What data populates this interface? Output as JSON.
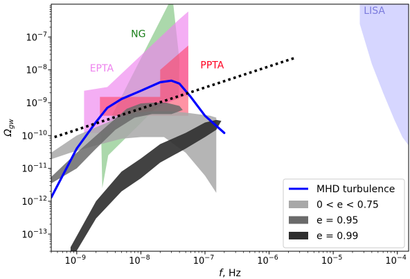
{
  "chart_data": {
    "type": "area",
    "xscale": "log",
    "yscale": "log",
    "xlim": [
      4e-10,
      0.00015
    ],
    "ylim": [
      3e-14,
      1e-06
    ],
    "grid": false,
    "legend_position": "lower-right",
    "xlabel": "f, Hz",
    "ylabel": "Ω_gw",
    "xticks": [
      {
        "value": 1e-09,
        "base": "10",
        "exp": "−9"
      },
      {
        "value": 1e-08,
        "base": "10",
        "exp": "−8"
      },
      {
        "value": 1e-07,
        "base": "10",
        "exp": "−7"
      },
      {
        "value": 1e-06,
        "base": "10",
        "exp": "−6"
      },
      {
        "value": 1e-05,
        "base": "10",
        "exp": "−5"
      },
      {
        "value": 0.0001,
        "base": "10",
        "exp": "−4"
      }
    ],
    "yticks": [
      {
        "value": 1e-13,
        "base": "10",
        "exp": "−13"
      },
      {
        "value": 1e-12,
        "base": "10",
        "exp": "−12"
      },
      {
        "value": 1e-11,
        "base": "10",
        "exp": "−11"
      },
      {
        "value": 1e-10,
        "base": "10",
        "exp": "−10"
      },
      {
        "value": 1e-09,
        "base": "10",
        "exp": "−9"
      },
      {
        "value": 1e-08,
        "base": "10",
        "exp": "−8"
      },
      {
        "value": 1e-07,
        "base": "10",
        "exp": "−7"
      }
    ],
    "regions": [
      {
        "id": "lisa",
        "label": "LISA",
        "color": "#c8c8ff",
        "label_color": "#7b7bdd",
        "opacity": 0.75,
        "label_at": [
          3e-05,
          5e-07
        ],
        "points": [
          [
            2.6e-05,
            1e-06
          ],
          [
            2.6e-05,
            2.5e-07
          ],
          [
            4e-05,
            1.5e-08
          ],
          [
            6e-05,
            2e-09
          ],
          [
            9e-05,
            3e-10
          ],
          [
            0.00012,
            9e-11
          ],
          [
            0.00015,
            5e-11
          ],
          [
            0.00015,
            1e-06
          ]
        ]
      },
      {
        "id": "ng",
        "label": "NG",
        "color": "#66b866",
        "label_color": "#1a7f1a",
        "opacity": 0.55,
        "label_at": [
          7e-09,
          1e-07
        ],
        "points": [
          [
            2.5e-09,
            2.5e-12
          ],
          [
            3.1e-09,
            2.5e-11
          ],
          [
            1.6e-08,
            6e-10
          ],
          [
            2.8e-08,
            1.2e-09
          ],
          [
            3.9e-08,
            1.3e-09
          ],
          [
            4e-08,
            2e-08
          ],
          [
            3.2e-08,
            1e-06
          ],
          [
            2.7e-08,
            1e-06
          ],
          [
            3e-09,
            2.2e-10
          ],
          [
            2.4e-09,
            1.3e-10
          ]
        ]
      },
      {
        "id": "epta",
        "label": "EPTA",
        "color": "#ee82ee",
        "label_color": "#ee82ee",
        "opacity": 0.65,
        "label_at": [
          1.6e-09,
          9e-09
        ],
        "points": [
          [
            1.3e-09,
            2.3e-09
          ],
          [
            3e-09,
            3e-09
          ],
          [
            3.8e-08,
            3.2e-07
          ],
          [
            5.5e-08,
            6e-07
          ],
          [
            5.5e-08,
            1.8e-09
          ],
          [
            2e-08,
            8e-10
          ],
          [
            8e-09,
            7e-10
          ],
          [
            3e-09,
            1.2e-10
          ],
          [
            1.3e-09,
            1.2e-10
          ]
        ]
      },
      {
        "id": "ppta",
        "label": "PPTA",
        "color": "#ff3a5a",
        "label_color": "#ff0020",
        "opacity": 0.55,
        "label_at": [
          8.5e-08,
          1.1e-08
        ],
        "points": [
          [
            2.3e-09,
            1.5e-09
          ],
          [
            2e-08,
            1.5e-09
          ],
          [
            2e-08,
            1e-08
          ],
          [
            5.5e-08,
            5.5e-08
          ],
          [
            5.5e-08,
            4e-10
          ],
          [
            2.3e-09,
            4e-10
          ]
        ]
      },
      {
        "id": "band-e075",
        "label": "",
        "color": "#a8a8a8",
        "label_color": "#000000",
        "opacity": 0.85,
        "points": [
          [
            4e-10,
            3e-11
          ],
          [
            1e-09,
            1e-10
          ],
          [
            3e-09,
            2.5e-10
          ],
          [
            8e-09,
            5e-10
          ],
          [
            1.5e-08,
            5.5e-10
          ],
          [
            3e-08,
            5.5e-10
          ],
          [
            5e-08,
            5e-10
          ],
          [
            1.2e-07,
            4e-10
          ],
          [
            1.5e-07,
            3.5e-10
          ],
          [
            1.5e-07,
            1.8e-12
          ],
          [
            1e-07,
            6e-12
          ],
          [
            5e-08,
            3e-11
          ],
          [
            2.3e-08,
            9e-11
          ],
          [
            1e-08,
            9e-11
          ],
          [
            5e-09,
            8e-11
          ],
          [
            2e-09,
            5e-11
          ],
          [
            8e-10,
            3e-11
          ],
          [
            4e-10,
            1.9e-11
          ]
        ]
      },
      {
        "id": "band-e095",
        "label": "",
        "color": "#6a6a6a",
        "label_color": "#000000",
        "opacity": 0.85,
        "points": [
          [
            4e-10,
            5.5e-12
          ],
          [
            1e-09,
            3e-11
          ],
          [
            3e-09,
            2e-10
          ],
          [
            6e-09,
            6.5e-10
          ],
          [
            1e-08,
            9.5e-10
          ],
          [
            1.5e-08,
            1e-09
          ],
          [
            2.5e-08,
            1e-09
          ],
          [
            4e-08,
            8e-10
          ],
          [
            4.5e-08,
            6e-10
          ],
          [
            3e-08,
            4.5e-10
          ],
          [
            1.5e-08,
            4.5e-10
          ],
          [
            8e-09,
            3.5e-10
          ],
          [
            4e-09,
            1.5e-10
          ],
          [
            2e-09,
            4e-11
          ],
          [
            1e-09,
            1e-11
          ],
          [
            4e-10,
            3.5e-12
          ]
        ]
      },
      {
        "id": "band-e099",
        "label": "",
        "color": "#2e2e2e",
        "label_color": "#000000",
        "opacity": 0.9,
        "points": [
          [
            8e-10,
            1.5e-14
          ],
          [
            2e-09,
            3e-13
          ],
          [
            5e-09,
            2e-12
          ],
          [
            1e-08,
            5e-12
          ],
          [
            2e-08,
            1.5e-11
          ],
          [
            5e-08,
            4e-11
          ],
          [
            1e-07,
            9e-11
          ],
          [
            1.5e-07,
            1.5e-10
          ],
          [
            1.8e-07,
            2.8e-10
          ],
          [
            1.5e-07,
            3e-10
          ],
          [
            1e-07,
            2.5e-10
          ],
          [
            5e-08,
            1.2e-10
          ],
          [
            2e-08,
            5.5e-11
          ],
          [
            1e-08,
            2e-11
          ],
          [
            5e-09,
            8e-12
          ],
          [
            2e-09,
            1e-12
          ],
          [
            8e-10,
            4e-14
          ]
        ]
      }
    ],
    "series": [
      {
        "name": "MHD turbulence",
        "color": "#0000ff",
        "width": 3.2,
        "style": "solid",
        "x": [
          4e-10,
          1e-09,
          2e-09,
          3e-09,
          5e-09,
          1e-08,
          2e-08,
          3e-08,
          4e-08,
          6e-08,
          1e-07,
          2e-07
        ],
        "y": [
          1.3e-12,
          4e-11,
          2.6e-10,
          7e-10,
          1.3e-09,
          2.3e-09,
          4.2e-09,
          4.7e-09,
          3.8e-09,
          1.5e-09,
          4e-10,
          1.2e-10
        ]
      },
      {
        "name": "",
        "color": "#000000",
        "width": 3.6,
        "style": "dotted",
        "x": [
          4.5e-10,
          2.5e-06
        ],
        "y": [
          9e-11,
          2.3e-08
        ]
      }
    ],
    "legend": [
      {
        "label": "MHD turbulence",
        "kind": "line",
        "color": "#0000ff"
      },
      {
        "label": "0 < e < 0.75",
        "kind": "patch",
        "color": "#a8a8a8"
      },
      {
        "label": "e = 0.95",
        "kind": "patch",
        "color": "#6a6a6a"
      },
      {
        "label": "e = 0.99",
        "kind": "patch",
        "color": "#2e2e2e"
      }
    ]
  }
}
